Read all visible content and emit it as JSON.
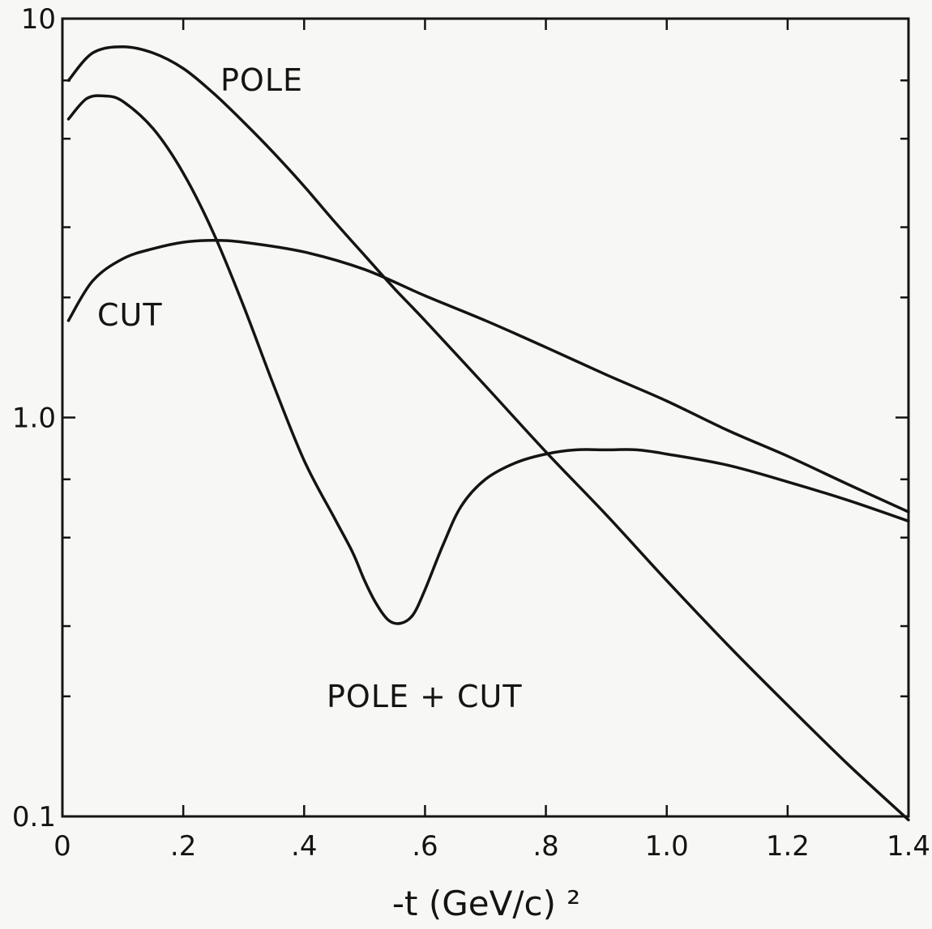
{
  "chart_data": {
    "type": "line",
    "title": "",
    "xlabel": "-t (GeV/c) ²",
    "ylabel": "",
    "xlim": [
      0,
      1.4
    ],
    "ylim": [
      0.1,
      10
    ],
    "yscale": "log",
    "grid": false,
    "x_ticks": [
      0,
      0.2,
      0.4,
      0.6,
      0.8,
      1.0,
      1.2,
      1.4
    ],
    "x_tick_labels": [
      "0",
      ".2",
      ".4",
      ".6",
      ".8",
      "1.0",
      "1.2",
      "1.4"
    ],
    "y_ticks": [
      0.1,
      1.0,
      10
    ],
    "y_tick_labels": [
      "0.1",
      "1.0",
      "10"
    ],
    "y_minor_ticks": [
      0.2,
      0.3,
      0.5,
      0.7,
      2,
      3,
      5,
      7
    ],
    "annotations": [
      "POLE",
      "CUT",
      "POLE + CUT"
    ],
    "series": [
      {
        "name": "POLE",
        "x": [
          0.01,
          0.05,
          0.1,
          0.15,
          0.2,
          0.25,
          0.3,
          0.35,
          0.4,
          0.45,
          0.5,
          0.55,
          0.6,
          0.7,
          0.8,
          0.9,
          1.0,
          1.1,
          1.2,
          1.3,
          1.4
        ],
        "y": [
          7.0,
          8.2,
          8.5,
          8.2,
          7.5,
          6.5,
          5.5,
          4.6,
          3.8,
          3.1,
          2.55,
          2.1,
          1.75,
          1.2,
          0.82,
          0.57,
          0.39,
          0.27,
          0.19,
          0.135,
          0.098
        ]
      },
      {
        "name": "CUT",
        "x": [
          0.01,
          0.05,
          0.1,
          0.15,
          0.2,
          0.25,
          0.3,
          0.4,
          0.5,
          0.6,
          0.7,
          0.8,
          0.9,
          1.0,
          1.1,
          1.2,
          1.3,
          1.4
        ],
        "y": [
          1.75,
          2.2,
          2.5,
          2.65,
          2.75,
          2.78,
          2.75,
          2.6,
          2.35,
          2.02,
          1.75,
          1.5,
          1.28,
          1.1,
          0.93,
          0.8,
          0.68,
          0.58
        ]
      },
      {
        "name": "POLE + CUT",
        "x": [
          0.01,
          0.04,
          0.07,
          0.1,
          0.15,
          0.2,
          0.25,
          0.3,
          0.35,
          0.4,
          0.45,
          0.48,
          0.5,
          0.52,
          0.54,
          0.56,
          0.58,
          0.6,
          0.63,
          0.66,
          0.7,
          0.75,
          0.8,
          0.85,
          0.9,
          0.95,
          1.0,
          1.1,
          1.2,
          1.3,
          1.4
        ],
        "y": [
          5.6,
          6.3,
          6.4,
          6.2,
          5.3,
          4.1,
          2.9,
          1.9,
          1.2,
          0.78,
          0.56,
          0.46,
          0.39,
          0.34,
          0.31,
          0.305,
          0.32,
          0.37,
          0.48,
          0.6,
          0.7,
          0.77,
          0.81,
          0.83,
          0.83,
          0.83,
          0.81,
          0.76,
          0.69,
          0.62,
          0.55
        ]
      }
    ]
  }
}
